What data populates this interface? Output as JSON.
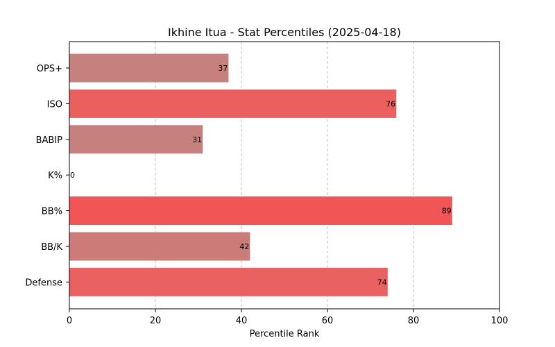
{
  "chart_data": {
    "type": "bar",
    "orientation": "horizontal",
    "title": "Ikhine Itua - Stat Percentiles (2025-04-18)",
    "xlabel": "Percentile Rank",
    "ylabel": "",
    "xlim": [
      0,
      100
    ],
    "xticks": [
      0,
      20,
      40,
      60,
      80,
      100
    ],
    "grid": "x-dashed",
    "categories": [
      "OPS+",
      "ISO",
      "BABIP",
      "K%",
      "BB%",
      "BB/K",
      "Defense"
    ],
    "values": [
      37,
      76,
      31,
      0,
      89,
      42,
      74
    ],
    "colors": [
      "#c6807e",
      "#eb5f5f",
      "#c6807e",
      "#c6807e",
      "#f25556",
      "#cb7b78",
      "#e96160"
    ]
  }
}
